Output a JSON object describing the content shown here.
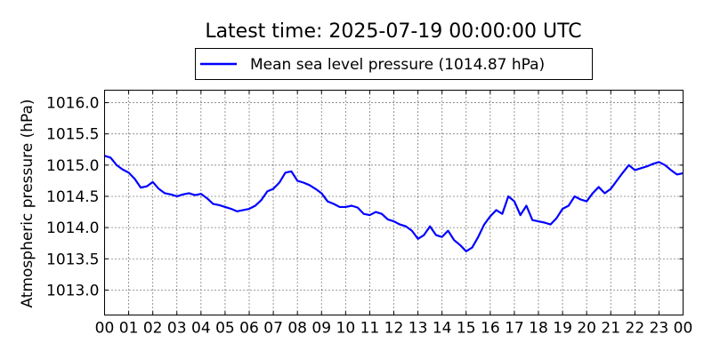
{
  "colors": {
    "series": "#0000ff",
    "background": "#ffffff",
    "axes": "#000000",
    "grid": "#000000"
  },
  "chart_data": {
    "type": "line",
    "title": "Latest time: 2025-07-19 00:00:00 UTC",
    "xlabel": "",
    "ylabel": "Atmospheric pressure (hPa)",
    "xlim": [
      0,
      24
    ],
    "ylim": [
      1012.6,
      1016.2
    ],
    "grid": true,
    "legend_position": "top-center (above plot)",
    "x_ticks": [
      0,
      1,
      2,
      3,
      4,
      5,
      6,
      7,
      8,
      9,
      10,
      11,
      12,
      13,
      14,
      15,
      16,
      17,
      18,
      19,
      20,
      21,
      22,
      23,
      24
    ],
    "x_tick_labels": [
      "00",
      "01",
      "02",
      "03",
      "04",
      "05",
      "06",
      "07",
      "08",
      "09",
      "10",
      "11",
      "12",
      "13",
      "14",
      "15",
      "16",
      "17",
      "18",
      "19",
      "20",
      "21",
      "22",
      "23",
      "00"
    ],
    "y_ticks": [
      1013.0,
      1013.5,
      1014.0,
      1014.5,
      1015.0,
      1015.5,
      1016.0
    ],
    "y_tick_labels": [
      "1013.0",
      "1013.5",
      "1014.0",
      "1014.5",
      "1015.0",
      "1015.5",
      "1016.0"
    ],
    "series": [
      {
        "name": "Mean sea level pressure (1014.87 hPa)",
        "color": "#0000ff",
        "x": [
          0.0,
          0.25,
          0.5,
          0.75,
          1.0,
          1.25,
          1.5,
          1.75,
          2.0,
          2.25,
          2.5,
          2.75,
          3.0,
          3.25,
          3.5,
          3.75,
          4.0,
          4.25,
          4.5,
          4.75,
          5.0,
          5.25,
          5.5,
          5.75,
          6.0,
          6.25,
          6.5,
          6.75,
          7.0,
          7.25,
          7.5,
          7.75,
          8.0,
          8.25,
          8.5,
          8.75,
          9.0,
          9.25,
          9.5,
          9.75,
          10.0,
          10.25,
          10.5,
          10.75,
          11.0,
          11.25,
          11.5,
          11.75,
          12.0,
          12.25,
          12.5,
          12.75,
          13.0,
          13.25,
          13.5,
          13.75,
          14.0,
          14.25,
          14.5,
          14.75,
          15.0,
          15.25,
          15.5,
          15.75,
          16.0,
          16.25,
          16.5,
          16.75,
          17.0,
          17.25,
          17.5,
          17.75,
          18.0,
          18.25,
          18.5,
          18.75,
          19.0,
          19.25,
          19.5,
          19.75,
          20.0,
          20.25,
          20.5,
          20.75,
          21.0,
          21.25,
          21.5,
          21.75,
          22.0,
          22.25,
          22.5,
          22.75,
          23.0,
          23.25,
          23.5,
          23.75,
          24.0
        ],
        "values": [
          1015.15,
          1015.12,
          1015.0,
          1014.93,
          1014.88,
          1014.78,
          1014.64,
          1014.66,
          1014.73,
          1014.62,
          1014.55,
          1014.53,
          1014.5,
          1014.53,
          1014.55,
          1014.52,
          1014.54,
          1014.47,
          1014.38,
          1014.36,
          1014.33,
          1014.3,
          1014.26,
          1014.28,
          1014.3,
          1014.35,
          1014.44,
          1014.58,
          1014.62,
          1014.72,
          1014.88,
          1014.9,
          1014.75,
          1014.72,
          1014.68,
          1014.62,
          1014.55,
          1014.42,
          1014.38,
          1014.33,
          1014.33,
          1014.35,
          1014.32,
          1014.22,
          1014.2,
          1014.25,
          1014.22,
          1014.13,
          1014.1,
          1014.05,
          1014.02,
          1013.95,
          1013.82,
          1013.88,
          1014.02,
          1013.88,
          1013.85,
          1013.95,
          1013.8,
          1013.72,
          1013.62,
          1013.68,
          1013.85,
          1014.05,
          1014.18,
          1014.28,
          1014.22,
          1014.5,
          1014.42,
          1014.2,
          1014.35,
          1014.12,
          1014.1,
          1014.08,
          1014.05,
          1014.15,
          1014.3,
          1014.35,
          1014.5,
          1014.45,
          1014.42,
          1014.55,
          1014.65,
          1014.55,
          1014.62,
          1014.75,
          1014.88,
          1015.0,
          1014.92,
          1014.95,
          1014.98,
          1015.02,
          1015.05,
          1015.0,
          1014.92,
          1014.85,
          1014.87
        ]
      }
    ]
  }
}
